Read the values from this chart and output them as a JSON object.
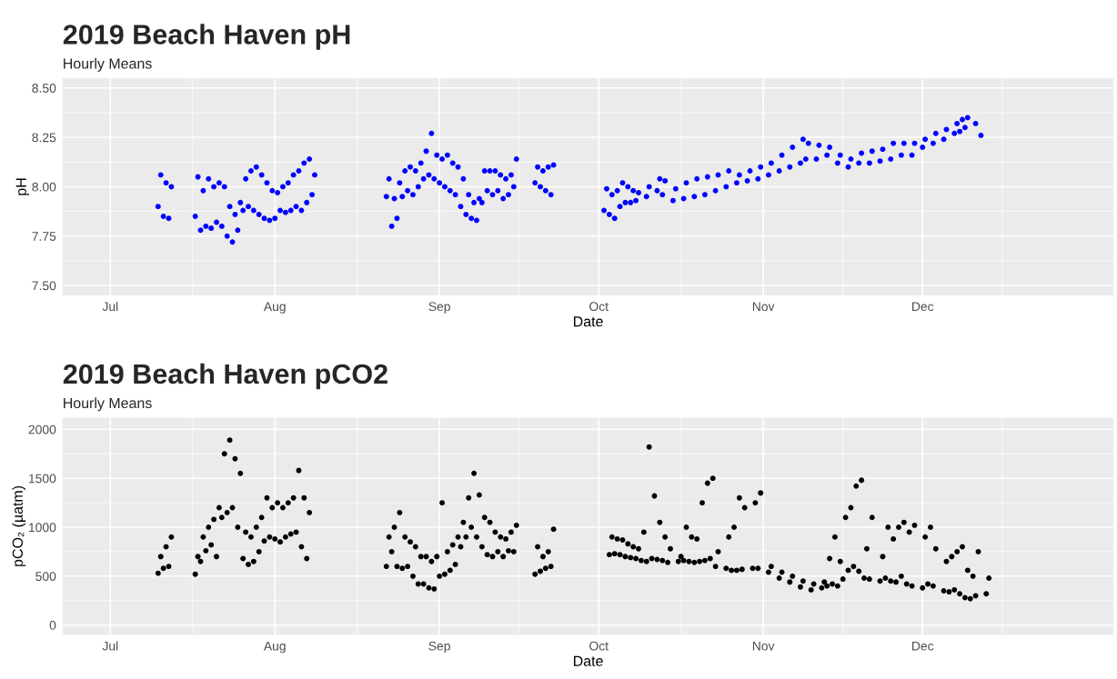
{
  "chart_data": [
    {
      "type": "scatter",
      "title": "2019 Beach Haven pH",
      "subtitle": "Hourly Means",
      "xlabel": "Date",
      "ylabel": "pH",
      "marker": "circle",
      "grid": true,
      "xlim": [
        "2019-06-22",
        "2020-01-06"
      ],
      "ylim": [
        7.45,
        8.55
      ],
      "xticks": [
        {
          "value": "2019-07-01",
          "label": "Jul"
        },
        {
          "value": "2019-08-01",
          "label": "Aug"
        },
        {
          "value": "2019-09-01",
          "label": "Sep"
        },
        {
          "value": "2019-10-01",
          "label": "Oct"
        },
        {
          "value": "2019-11-01",
          "label": "Nov"
        },
        {
          "value": "2019-12-01",
          "label": "Dec"
        }
      ],
      "yticks": [
        {
          "value": 7.5,
          "label": "7.50"
        },
        {
          "value": 7.75,
          "label": "7.75"
        },
        {
          "value": 8.0,
          "label": "8.00"
        },
        {
          "value": 8.25,
          "label": "8.25"
        },
        {
          "value": 8.5,
          "label": "8.50"
        }
      ],
      "series": [
        {
          "color": "#0000ff",
          "x": [
            "2019-07-10",
            "2019-07-10T12:00",
            "2019-07-11",
            "2019-07-11T12:00",
            "2019-07-12",
            "2019-07-12T12:00",
            "2019-07-17",
            "2019-07-17T12:00",
            "2019-07-18",
            "2019-07-18T12:00",
            "2019-07-19",
            "2019-07-19T12:00",
            "2019-07-20",
            "2019-07-20T12:00",
            "2019-07-21",
            "2019-07-21T12:00",
            "2019-07-22",
            "2019-07-22T12:00",
            "2019-07-23",
            "2019-07-23T12:00",
            "2019-07-24",
            "2019-07-24T12:00",
            "2019-07-25",
            "2019-07-25T12:00",
            "2019-07-26",
            "2019-07-26T12:00",
            "2019-07-27",
            "2019-07-27T12:00",
            "2019-07-28",
            "2019-07-28T12:00",
            "2019-07-29",
            "2019-07-29T12:00",
            "2019-07-30",
            "2019-07-30T12:00",
            "2019-07-31",
            "2019-07-31T12:00",
            "2019-08-01",
            "2019-08-01T12:00",
            "2019-08-02",
            "2019-08-02T12:00",
            "2019-08-03",
            "2019-08-03T12:00",
            "2019-08-04",
            "2019-08-04T12:00",
            "2019-08-05",
            "2019-08-05T12:00",
            "2019-08-06",
            "2019-08-06T12:00",
            "2019-08-07",
            "2019-08-07T12:00",
            "2019-08-08",
            "2019-08-08T12:00",
            "2019-08-22",
            "2019-08-22T12:00",
            "2019-08-23",
            "2019-08-23T12:00",
            "2019-08-24",
            "2019-08-24T12:00",
            "2019-08-25",
            "2019-08-25T12:00",
            "2019-08-26",
            "2019-08-26T12:00",
            "2019-08-27",
            "2019-08-27T12:00",
            "2019-08-28",
            "2019-08-28T12:00",
            "2019-08-29",
            "2019-08-29T12:00",
            "2019-08-30",
            "2019-08-30T12:00",
            "2019-08-31",
            "2019-08-31T12:00",
            "2019-09-01",
            "2019-09-01T12:00",
            "2019-09-02",
            "2019-09-02T12:00",
            "2019-09-03",
            "2019-09-03T12:00",
            "2019-09-04",
            "2019-09-04T12:00",
            "2019-09-05",
            "2019-09-05T12:00",
            "2019-09-06",
            "2019-09-06T12:00",
            "2019-09-07",
            "2019-09-07T12:00",
            "2019-09-08",
            "2019-09-08T12:00",
            "2019-09-09",
            "2019-09-09T12:00",
            "2019-09-10",
            "2019-09-10T12:00",
            "2019-09-11",
            "2019-09-11T12:00",
            "2019-09-12",
            "2019-09-12T12:00",
            "2019-09-13",
            "2019-09-13T12:00",
            "2019-09-14",
            "2019-09-14T12:00",
            "2019-09-15",
            "2019-09-15T12:00",
            "2019-09-19",
            "2019-09-19T12:00",
            "2019-09-20",
            "2019-09-20T12:00",
            "2019-09-21",
            "2019-09-21T12:00",
            "2019-09-22",
            "2019-09-22T12:00",
            "2019-10-02",
            "2019-10-02T12:00",
            "2019-10-03",
            "2019-10-03T12:00",
            "2019-10-04",
            "2019-10-04T12:00",
            "2019-10-05",
            "2019-10-05T12:00",
            "2019-10-06",
            "2019-10-06T12:00",
            "2019-10-07",
            "2019-10-07T12:00",
            "2019-10-08",
            "2019-10-08T12:00",
            "2019-10-10",
            "2019-10-10T12:00",
            "2019-10-12",
            "2019-10-12T12:00",
            "2019-10-13",
            "2019-10-13T12:00",
            "2019-10-15",
            "2019-10-15T12:00",
            "2019-10-17",
            "2019-10-17T12:00",
            "2019-10-19",
            "2019-10-19T12:00",
            "2019-10-21",
            "2019-10-21T12:00",
            "2019-10-23",
            "2019-10-23T12:00",
            "2019-10-25",
            "2019-10-25T12:00",
            "2019-10-27",
            "2019-10-27T12:00",
            "2019-10-29",
            "2019-10-29T12:00",
            "2019-10-31",
            "2019-10-31T12:00",
            "2019-11-02",
            "2019-11-02T12:00",
            "2019-11-04",
            "2019-11-04T12:00",
            "2019-11-06",
            "2019-11-06T12:00",
            "2019-11-08",
            "2019-11-08T12:00",
            "2019-11-09",
            "2019-11-09T12:00",
            "2019-11-11",
            "2019-11-11T12:00",
            "2019-11-13",
            "2019-11-13T12:00",
            "2019-11-15",
            "2019-11-15T12:00",
            "2019-11-17",
            "2019-11-17T12:00",
            "2019-11-19",
            "2019-11-19T12:00",
            "2019-11-21",
            "2019-11-21T12:00",
            "2019-11-23",
            "2019-11-23T12:00",
            "2019-11-25",
            "2019-11-25T12:00",
            "2019-11-27",
            "2019-11-27T12:00",
            "2019-11-29",
            "2019-11-29T12:00",
            "2019-12-01",
            "2019-12-01T12:00",
            "2019-12-03",
            "2019-12-03T12:00",
            "2019-12-05",
            "2019-12-05T12:00",
            "2019-12-07",
            "2019-12-07T12:00",
            "2019-12-08",
            "2019-12-08T12:00",
            "2019-12-09",
            "2019-12-09T12:00",
            "2019-12-11",
            "2019-12-12"
          ],
          "values": [
            7.9,
            8.06,
            7.85,
            8.02,
            7.84,
            8.0,
            7.85,
            8.05,
            7.78,
            7.98,
            7.8,
            8.04,
            7.79,
            8.0,
            7.82,
            8.02,
            7.8,
            8.0,
            7.75,
            7.9,
            7.72,
            7.86,
            7.78,
            7.92,
            7.88,
            8.04,
            7.9,
            8.08,
            7.88,
            8.1,
            7.86,
            8.06,
            7.84,
            8.02,
            7.83,
            7.98,
            7.84,
            7.97,
            7.88,
            8.0,
            7.87,
            8.02,
            7.88,
            8.06,
            7.9,
            8.08,
            7.88,
            8.12,
            7.92,
            8.14,
            7.96,
            8.06,
            7.95,
            8.04,
            7.8,
            7.94,
            7.84,
            8.02,
            7.95,
            8.08,
            7.98,
            8.1,
            7.96,
            8.08,
            8.0,
            8.12,
            8.04,
            8.18,
            8.06,
            8.27,
            8.04,
            8.16,
            8.02,
            8.14,
            8.0,
            8.16,
            7.98,
            8.12,
            7.96,
            8.1,
            7.9,
            8.04,
            7.86,
            7.96,
            7.84,
            7.92,
            7.83,
            7.94,
            7.92,
            8.08,
            7.98,
            8.08,
            7.96,
            8.08,
            7.98,
            8.06,
            7.94,
            8.04,
            7.96,
            8.06,
            8.0,
            8.14,
            8.02,
            8.1,
            8.0,
            8.08,
            7.98,
            8.1,
            7.96,
            8.11,
            7.88,
            7.99,
            7.86,
            7.96,
            7.84,
            7.98,
            7.9,
            8.02,
            7.92,
            8.0,
            7.92,
            7.98,
            7.93,
            7.97,
            7.95,
            8.0,
            7.98,
            8.04,
            7.96,
            8.03,
            7.93,
            7.99,
            7.94,
            8.02,
            7.95,
            8.04,
            7.96,
            8.05,
            7.98,
            8.06,
            8.0,
            8.08,
            8.02,
            8.06,
            8.03,
            8.08,
            8.04,
            8.1,
            8.06,
            8.12,
            8.08,
            8.16,
            8.1,
            8.2,
            8.12,
            8.24,
            8.14,
            8.22,
            8.14,
            8.21,
            8.16,
            8.2,
            8.12,
            8.16,
            8.1,
            8.14,
            8.12,
            8.17,
            8.12,
            8.18,
            8.13,
            8.19,
            8.14,
            8.22,
            8.16,
            8.22,
            8.16,
            8.22,
            8.2,
            8.24,
            8.22,
            8.27,
            8.24,
            8.29,
            8.27,
            8.32,
            8.28,
            8.34,
            8.3,
            8.35,
            8.32,
            8.26
          ]
        }
      ]
    },
    {
      "type": "scatter",
      "title": "2019 Beach Haven pCO2",
      "subtitle": "Hourly Means",
      "xlabel": "Date",
      "ylabel": "pCO₂ (µatm)",
      "marker": "circle",
      "grid": true,
      "xlim": [
        "2019-06-22",
        "2020-01-06"
      ],
      "ylim": [
        -100,
        2120
      ],
      "xticks": [
        {
          "value": "2019-07-01",
          "label": "Jul"
        },
        {
          "value": "2019-08-01",
          "label": "Aug"
        },
        {
          "value": "2019-09-01",
          "label": "Sep"
        },
        {
          "value": "2019-10-01",
          "label": "Oct"
        },
        {
          "value": "2019-11-01",
          "label": "Nov"
        },
        {
          "value": "2019-12-01",
          "label": "Dec"
        }
      ],
      "yticks": [
        0,
        500,
        1000,
        1500,
        2000
      ],
      "series": [
        {
          "color": "#000000",
          "x": [
            "2019-07-10",
            "2019-07-10T12:00",
            "2019-07-11",
            "2019-07-11T12:00",
            "2019-07-12",
            "2019-07-12T12:00",
            "2019-07-17",
            "2019-07-17T12:00",
            "2019-07-18",
            "2019-07-18T12:00",
            "2019-07-19",
            "2019-07-19T12:00",
            "2019-07-20",
            "2019-07-20T12:00",
            "2019-07-21",
            "2019-07-21T12:00",
            "2019-07-22",
            "2019-07-22T12:00",
            "2019-07-23",
            "2019-07-23T12:00",
            "2019-07-24",
            "2019-07-24T12:00",
            "2019-07-25",
            "2019-07-25T12:00",
            "2019-07-26",
            "2019-07-26T12:00",
            "2019-07-27",
            "2019-07-27T12:00",
            "2019-07-28",
            "2019-07-28T12:00",
            "2019-07-29",
            "2019-07-29T12:00",
            "2019-07-30",
            "2019-07-30T12:00",
            "2019-07-31",
            "2019-07-31T12:00",
            "2019-08-01",
            "2019-08-01T12:00",
            "2019-08-02",
            "2019-08-02T12:00",
            "2019-08-03",
            "2019-08-03T12:00",
            "2019-08-04",
            "2019-08-04T12:00",
            "2019-08-05",
            "2019-08-05T12:00",
            "2019-08-06",
            "2019-08-06T12:00",
            "2019-08-07",
            "2019-08-07T12:00",
            "2019-08-22",
            "2019-08-22T12:00",
            "2019-08-23",
            "2019-08-23T12:00",
            "2019-08-24",
            "2019-08-24T12:00",
            "2019-08-25",
            "2019-08-25T12:00",
            "2019-08-26",
            "2019-08-26T12:00",
            "2019-08-27",
            "2019-08-27T12:00",
            "2019-08-28",
            "2019-08-28T12:00",
            "2019-08-29",
            "2019-08-29T12:00",
            "2019-08-30",
            "2019-08-30T12:00",
            "2019-08-31",
            "2019-08-31T12:00",
            "2019-09-01",
            "2019-09-01T12:00",
            "2019-09-02",
            "2019-09-02T12:00",
            "2019-09-03",
            "2019-09-03T12:00",
            "2019-09-04",
            "2019-09-04T12:00",
            "2019-09-05",
            "2019-09-05T12:00",
            "2019-09-06",
            "2019-09-06T12:00",
            "2019-09-07",
            "2019-09-07T12:00",
            "2019-09-08",
            "2019-09-08T12:00",
            "2019-09-09",
            "2019-09-09T12:00",
            "2019-09-10",
            "2019-09-10T12:00",
            "2019-09-11",
            "2019-09-11T12:00",
            "2019-09-12",
            "2019-09-12T12:00",
            "2019-09-13",
            "2019-09-13T12:00",
            "2019-09-14",
            "2019-09-14T12:00",
            "2019-09-15",
            "2019-09-15T12:00",
            "2019-09-19",
            "2019-09-19T12:00",
            "2019-09-20",
            "2019-09-20T12:00",
            "2019-09-21",
            "2019-09-21T12:00",
            "2019-09-22",
            "2019-09-22T12:00",
            "2019-10-03",
            "2019-10-03T12:00",
            "2019-10-04",
            "2019-10-04T12:00",
            "2019-10-05",
            "2019-10-05T12:00",
            "2019-10-06",
            "2019-10-06T12:00",
            "2019-10-07",
            "2019-10-07T12:00",
            "2019-10-08",
            "2019-10-08T12:00",
            "2019-10-09",
            "2019-10-09T12:00",
            "2019-10-10",
            "2019-10-10T12:00",
            "2019-10-11",
            "2019-10-11T12:00",
            "2019-10-12",
            "2019-10-12T12:00",
            "2019-10-13",
            "2019-10-13T12:00",
            "2019-10-14",
            "2019-10-14T12:00",
            "2019-10-16",
            "2019-10-16T12:00",
            "2019-10-17",
            "2019-10-17T12:00",
            "2019-10-18",
            "2019-10-18T12:00",
            "2019-10-19",
            "2019-10-19T12:00",
            "2019-10-20",
            "2019-10-20T12:00",
            "2019-10-21",
            "2019-10-21T12:00",
            "2019-10-22",
            "2019-10-22T12:00",
            "2019-10-23",
            "2019-10-23T12:00",
            "2019-10-25",
            "2019-10-25T12:00",
            "2019-10-26",
            "2019-10-26T12:00",
            "2019-10-27",
            "2019-10-27T12:00",
            "2019-10-28",
            "2019-10-28T12:00",
            "2019-10-30",
            "2019-10-30T12:00",
            "2019-10-31",
            "2019-10-31T12:00",
            "2019-11-02",
            "2019-11-02T12:00",
            "2019-11-04",
            "2019-11-04T12:00",
            "2019-11-06",
            "2019-11-06T12:00",
            "2019-11-08",
            "2019-11-08T12:00",
            "2019-11-10",
            "2019-11-10T12:00",
            "2019-11-12",
            "2019-11-12T12:00",
            "2019-11-13",
            "2019-11-13T12:00",
            "2019-11-14",
            "2019-11-14T12:00",
            "2019-11-15",
            "2019-11-15T12:00",
            "2019-11-16",
            "2019-11-16T12:00",
            "2019-11-17",
            "2019-11-17T12:00",
            "2019-11-18",
            "2019-11-18T12:00",
            "2019-11-19",
            "2019-11-19T12:00",
            "2019-11-20",
            "2019-11-20T12:00",
            "2019-11-21",
            "2019-11-21T12:00",
            "2019-11-23",
            "2019-11-23T12:00",
            "2019-11-24",
            "2019-11-24T12:00",
            "2019-11-25",
            "2019-11-25T12:00",
            "2019-11-26",
            "2019-11-26T12:00",
            "2019-11-27",
            "2019-11-27T12:00",
            "2019-11-28",
            "2019-11-28T12:00",
            "2019-11-29",
            "2019-11-29T12:00",
            "2019-12-01",
            "2019-12-01T12:00",
            "2019-12-02",
            "2019-12-02T12:00",
            "2019-12-03",
            "2019-12-03T12:00",
            "2019-12-05",
            "2019-12-05T12:00",
            "2019-12-06",
            "2019-12-06T12:00",
            "2019-12-07",
            "2019-12-07T12:00",
            "2019-12-08",
            "2019-12-08T12:00",
            "2019-12-09",
            "2019-12-09T12:00",
            "2019-12-10",
            "2019-12-10T12:00",
            "2019-12-11",
            "2019-12-11T12:00",
            "2019-12-13",
            "2019-12-13T12:00"
          ],
          "values": [
            530,
            700,
            580,
            800,
            600,
            900,
            520,
            700,
            650,
            900,
            760,
            1000,
            820,
            1080,
            700,
            1200,
            1100,
            1750,
            1150,
            1890,
            1200,
            1700,
            1000,
            1550,
            680,
            950,
            620,
            900,
            650,
            1000,
            750,
            1100,
            860,
            1300,
            900,
            1200,
            880,
            1250,
            850,
            1200,
            900,
            1250,
            930,
            1300,
            950,
            1580,
            800,
            1300,
            680,
            1150,
            600,
            900,
            750,
            1000,
            600,
            1150,
            580,
            900,
            600,
            850,
            500,
            800,
            420,
            700,
            420,
            700,
            380,
            650,
            370,
            700,
            500,
            1250,
            520,
            750,
            560,
            820,
            620,
            900,
            800,
            1050,
            900,
            1300,
            1000,
            1550,
            900,
            1330,
            800,
            1100,
            720,
            1050,
            700,
            950,
            750,
            900,
            700,
            880,
            760,
            950,
            750,
            1020,
            520,
            800,
            550,
            700,
            580,
            750,
            600,
            980,
            720,
            900,
            730,
            880,
            720,
            870,
            700,
            830,
            690,
            800,
            680,
            780,
            660,
            950,
            650,
            1820,
            680,
            1320,
            670,
            1050,
            660,
            900,
            640,
            780,
            650,
            700,
            660,
            1000,
            650,
            900,
            640,
            880,
            650,
            1250,
            660,
            1450,
            680,
            1500,
            600,
            750,
            580,
            900,
            560,
            1000,
            560,
            1300,
            570,
            1200,
            580,
            1250,
            580,
            1350,
            540,
            600,
            480,
            540,
            440,
            500,
            390,
            450,
            360,
            420,
            380,
            440,
            400,
            680,
            420,
            900,
            400,
            650,
            470,
            1100,
            560,
            1200,
            600,
            1420,
            550,
            1480,
            480,
            780,
            470,
            1100,
            450,
            700,
            480,
            1000,
            450,
            880,
            440,
            1000,
            500,
            1050,
            420,
            950,
            400,
            1020,
            380,
            900,
            420,
            1000,
            400,
            780,
            350,
            650,
            340,
            700,
            360,
            750,
            320,
            800,
            280,
            560,
            270,
            500,
            300,
            750,
            320,
            480
          ]
        }
      ]
    }
  ]
}
